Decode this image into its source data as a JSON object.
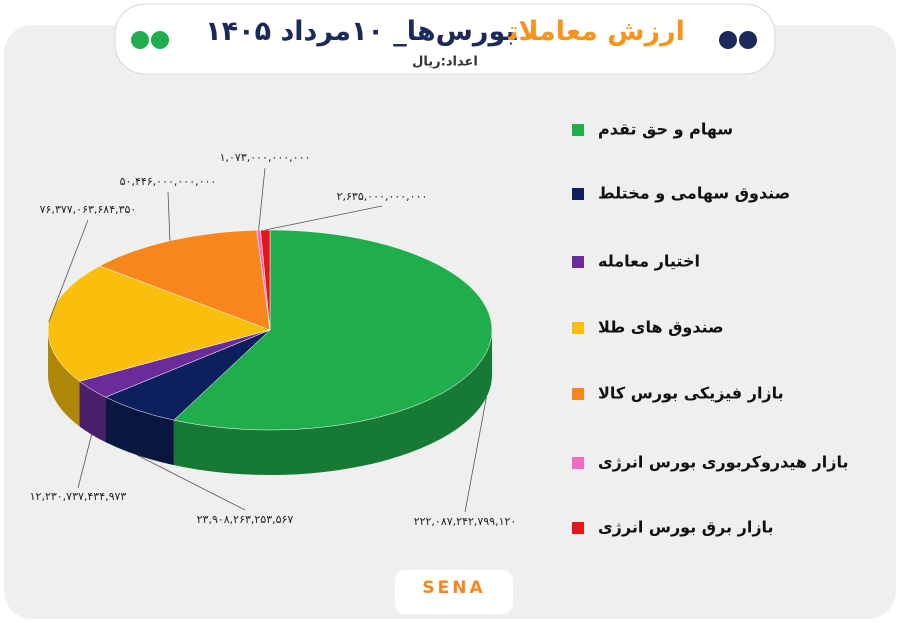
{
  "chart_data": {
    "type": "pie3d",
    "title": [
      {
        "text": "ارزش معاملات",
        "color": "#f7941d"
      },
      {
        "text": "بورس‌ها_ ۱۰مرداد ۱۴۰۵",
        "color": "#1b2a5a"
      }
    ],
    "subtitle": "اعداد:ریال",
    "categories": [
      "سهام و حق تقدم",
      "صندوق سهامی و مختلط",
      "اختیار معامله",
      "صندوق های طلا",
      "بازار فیزیکی بورس کالا",
      "بازار هیدروکربوری بورس انرژی",
      "بازار برق بورس انرژی"
    ],
    "values": [
      222087242799120,
      23908263253567,
      12230737434973,
      76377063684350,
      50446000000000,
      1073000000000,
      2635000000000
    ],
    "value_labels": [
      "۲۲۲,۰۸۷,۲۴۲,۷۹۹,۱۲۰",
      "۲۳,۹۰۸,۲۶۳,۲۵۳,۵۶۷",
      "۱۲,۲۳۰,۷۳۷,۴۳۴,۹۷۳",
      "۷۶,۳۷۷,۰۶۳,۶۸۴,۳۵۰",
      "۵۰,۴۴۶,۰۰۰,۰۰۰,۰۰۰",
      "۱,۰۷۳,۰۰۰,۰۰۰,۰۰۰",
      "۲,۶۳۵,۰۰۰,۰۰۰,۰۰۰"
    ],
    "colors": [
      "#1fae4b",
      "#0d1f5c",
      "#6a2c9a",
      "#f9bf0c",
      "#f7861c",
      "#f06bc4",
      "#e8131b"
    ],
    "legend": "right",
    "logo": "SENA"
  }
}
